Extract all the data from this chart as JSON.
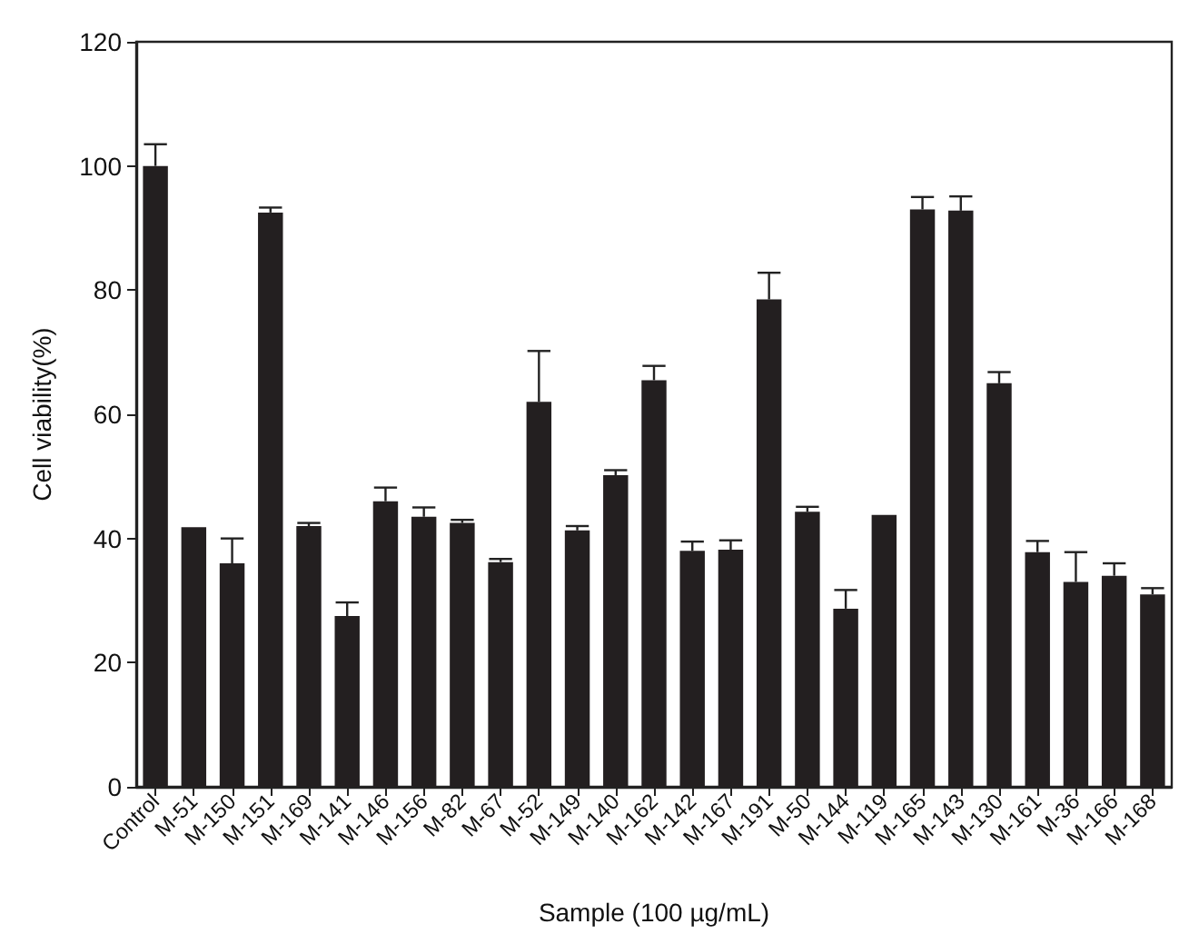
{
  "chart_data": {
    "type": "bar",
    "xlabel": "Sample (100 µg/mL)",
    "ylabel": "Cell viability(%)",
    "categories": [
      "Control",
      "M-51",
      "M-150",
      "M-151",
      "M-169",
      "M-141",
      "M-146",
      "M-156",
      "M-82",
      "M-67",
      "M-52",
      "M-149",
      "M-140",
      "M-162",
      "M-142",
      "M-167",
      "M-191",
      "M-50",
      "M-144",
      "M-119",
      "M-165",
      "M-143",
      "M-130",
      "M-161",
      "M-36",
      "M-166",
      "M-168"
    ],
    "values": [
      100,
      41.8,
      36,
      92.5,
      42,
      27.5,
      46,
      43.5,
      42.5,
      36.2,
      62,
      41.3,
      50.2,
      65.5,
      38,
      38.2,
      78.5,
      44.3,
      28.7,
      43.8,
      93,
      92.8,
      65,
      37.8,
      33,
      34,
      31
    ],
    "errors": [
      [
        100,
        103.5
      ],
      null,
      [
        36,
        40
      ],
      [
        92.5,
        93.3
      ],
      [
        42,
        42.5
      ],
      [
        27.5,
        29.7
      ],
      [
        46,
        48.2
      ],
      [
        43.5,
        45
      ],
      [
        42.5,
        43
      ],
      [
        36.2,
        36.7
      ],
      [
        62,
        70.2
      ],
      [
        41.3,
        42
      ],
      [
        50.2,
        51
      ],
      [
        65.5,
        67.8
      ],
      [
        38,
        39.5
      ],
      [
        38.2,
        39.7
      ],
      [
        78.5,
        82.8
      ],
      [
        44.3,
        45.1
      ],
      [
        28.7,
        31.7
      ],
      null,
      [
        93,
        95
      ],
      [
        92.8,
        95.1
      ],
      [
        65,
        66.8
      ],
      [
        37.8,
        39.6
      ],
      [
        33,
        37.8
      ],
      [
        34,
        36
      ],
      [
        31,
        32
      ]
    ],
    "color": "#231f20",
    "ylim": [
      0,
      120
    ],
    "yticks": [
      0,
      20,
      40,
      60,
      80,
      100,
      120
    ],
    "grid": false
  }
}
